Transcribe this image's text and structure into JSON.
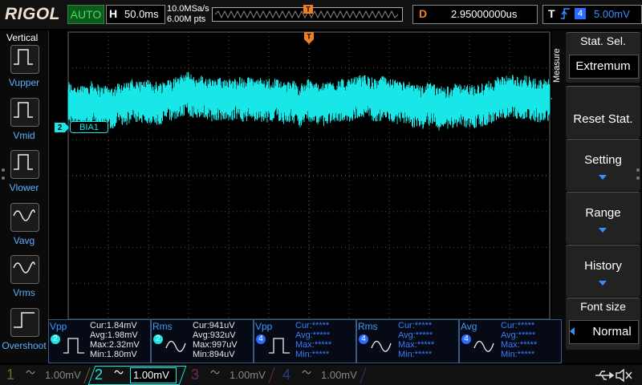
{
  "top_bar": {
    "brand": "RIGOL",
    "run_state": "AUTO",
    "timebase": {
      "label": "H",
      "value": "50.0ms"
    },
    "sample_rate": "10.0MSa/s",
    "memory_depth": "6.00M pts",
    "trigger_position_marker": "T",
    "delay": {
      "label": "D",
      "value": "2.95000000us"
    },
    "trigger": {
      "label": "T",
      "channel": "4",
      "level": "5.00mV"
    }
  },
  "left_menu": {
    "title": "Vertical",
    "items": [
      "Vupper",
      "Vmid",
      "Vlower",
      "Vavg",
      "Vrms",
      "Overshoot"
    ]
  },
  "screen": {
    "channel_marker": "2",
    "channel_label": "BIA1"
  },
  "right_menu": {
    "title": "Measure",
    "items": [
      {
        "label": "Stat. Sel.",
        "value": "Extremum"
      },
      {
        "label": "Reset Stat."
      },
      {
        "label": "Setting"
      },
      {
        "label": "Range"
      },
      {
        "label": "History"
      },
      {
        "label": "Font size",
        "value": "Normal"
      }
    ]
  },
  "measurements": [
    {
      "name": "Vpp",
      "channel": "2",
      "cur": "Cur:1.84mV",
      "avg": "Avg:1.98mV",
      "max": "Max:2.32mV",
      "min": "Min:1.80mV"
    },
    {
      "name": "Rms",
      "channel": "2",
      "cur": "Cur:941uV",
      "avg": "Avg:932uV",
      "max": "Max:997uV",
      "min": "Min:894uV"
    },
    {
      "name": "Vpp",
      "channel": "4",
      "cur": "Cur:*****",
      "avg": "Avg:*****",
      "max": "Max:*****",
      "min": "Min:*****"
    },
    {
      "name": "Rms",
      "channel": "4",
      "cur": "Cur:*****",
      "avg": "Avg:*****",
      "max": "Max:*****",
      "min": "Min:*****"
    },
    {
      "name": "Avg",
      "channel": "4",
      "cur": "Cur:*****",
      "avg": "Avg:*****",
      "max": "Max:*****",
      "min": "Min:*****"
    }
  ],
  "channels": [
    {
      "number": "1",
      "scale": "1.00mV"
    },
    {
      "number": "2",
      "scale": "1.00mV"
    },
    {
      "number": "3",
      "scale": "1.00mV"
    },
    {
      "number": "4",
      "scale": "1.00mV"
    }
  ]
}
